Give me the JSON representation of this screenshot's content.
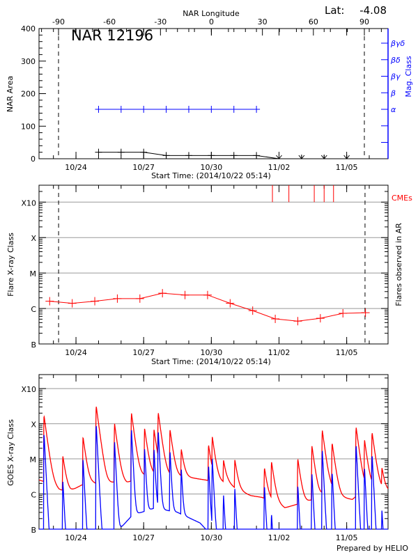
{
  "header": {
    "lat_label": "Lat:",
    "lat_value": "-4.08"
  },
  "footer": {
    "credit": "Prepared by HELIO"
  },
  "chart_data": [
    {
      "type": "line",
      "title": "NAR 12196",
      "ylabel": "NAR Area",
      "xlabel": "Start Time: (2014/10/22 05:14)",
      "top_xlabel": "NAR Longitude",
      "right_ylabel": "Mag. Class",
      "xlim": [
        "2014-10-22T08:40",
        "2014-11-06T20:00"
      ],
      "ylim": [
        0,
        400
      ],
      "yticks": [
        "0",
        "100",
        "200",
        "300",
        "400"
      ],
      "xticks": [
        {
          "date": "2014-10-24T00:00",
          "label": "10/24"
        },
        {
          "date": "2014-10-27T00:00",
          "label": "10/27"
        },
        {
          "date": "2014-10-30T00:00",
          "label": "10/30"
        },
        {
          "date": "2014-11-02T00:00",
          "label": "11/02"
        },
        {
          "date": "2014-11-05T00:00",
          "label": "11/05"
        }
      ],
      "longitude_ticks": [
        "-90",
        "-60",
        "-30",
        "0",
        "30",
        "60",
        "90"
      ],
      "limb_longitudes": [
        -90,
        90
      ],
      "mag_class_ticks": [
        "α",
        "β",
        "βγ",
        "βδ",
        "βγδ"
      ],
      "area_series": {
        "color": "#000000",
        "dates": [
          "2014-10-25T00:00",
          "2014-10-26T00:00",
          "2014-10-27T00:00",
          "2014-10-28T00:00",
          "2014-10-29T00:00",
          "2014-10-30T00:00",
          "2014-10-31T00:00",
          "2014-11-01T00:00",
          "2014-11-02T00:00"
        ],
        "values": [
          20,
          20,
          20,
          10,
          10,
          10,
          10,
          10,
          0
        ]
      },
      "area_below_limit_dates": [
        "2014-11-02T00:00",
        "2014-11-03T00:00",
        "2014-11-04T00:00",
        "2014-11-05T00:00"
      ],
      "mag_class_series": {
        "color": "#0000ff",
        "dates": [
          "2014-10-25T00:00",
          "2014-10-26T00:00",
          "2014-10-27T00:00",
          "2014-10-28T00:00",
          "2014-10-29T00:00",
          "2014-10-30T00:00",
          "2014-10-31T00:00",
          "2014-11-01T00:00"
        ],
        "values": [
          "α",
          "α",
          "α",
          "α",
          "α",
          "α",
          "α",
          "α"
        ]
      }
    },
    {
      "type": "line",
      "ylabel": "Flare X-ray Class",
      "right_ylabel": "Flares observed in AR",
      "xlabel": "Start Time: (2014/10/22 05:14)",
      "yscale": "log",
      "ylim": [
        1e-07,
        0.003
      ],
      "yticks": [
        {
          "value": 1e-07,
          "label": "B"
        },
        {
          "value": 1e-06,
          "label": "C"
        },
        {
          "value": 1e-05,
          "label": "M"
        },
        {
          "value": 0.0001,
          "label": "X"
        },
        {
          "value": 0.001,
          "label": "X10"
        }
      ],
      "grid": true,
      "limb_dates": [
        "2014-10-23T05:30",
        "2014-11-05T19:30"
      ],
      "series": {
        "color": "#ff0000",
        "dates": [
          "2014-10-22T20:00",
          "2014-10-23T20:00",
          "2014-10-24T20:00",
          "2014-10-25T20:00",
          "2014-10-26T20:00",
          "2014-10-27T20:00",
          "2014-10-28T20:00",
          "2014-10-29T20:00",
          "2014-10-30T20:00",
          "2014-10-31T20:00",
          "2014-11-01T20:00",
          "2014-11-02T20:00",
          "2014-11-03T20:00",
          "2014-11-04T20:00",
          "2014-11-05T20:00"
        ],
        "values": [
          1.6e-06,
          1.4e-06,
          1.6e-06,
          1.9e-06,
          1.9e-06,
          2.7e-06,
          2.4e-06,
          2.4e-06,
          1.4e-06,
          8.7e-07,
          5.1e-07,
          4.4e-07,
          5.3e-07,
          7.3e-07,
          7.6e-07
        ]
      },
      "cmes": {
        "label": "CMEs",
        "color": "#ff0000",
        "dates": [
          "2014-11-01T17:00",
          "2014-11-02T10:30",
          "2014-11-03T13:30",
          "2014-11-04T00:00",
          "2014-11-04T10:00"
        ]
      }
    },
    {
      "type": "line",
      "ylabel": "GOES X-ray Class",
      "yscale": "log",
      "ylim": [
        1e-07,
        0.0025
      ],
      "grid": true,
      "yticks": [
        {
          "value": 1e-07,
          "label": "B"
        },
        {
          "value": 1e-06,
          "label": "C"
        },
        {
          "value": 1e-05,
          "label": "M"
        },
        {
          "value": 0.0001,
          "label": "X"
        },
        {
          "value": 0.001,
          "label": "X10"
        }
      ],
      "series": [
        {
          "color": "#ff0000",
          "baseline": [
            [
              "2014-10-22T09:00",
              2.5e-06
            ],
            [
              "2014-10-22T20:00",
              2e-06
            ],
            [
              "2014-10-23T06:00",
              1.3e-06
            ],
            [
              "2014-10-23T18:00",
              1.2e-06
            ],
            [
              "2014-10-24T06:00",
              1.8e-06
            ],
            [
              "2014-10-24T18:00",
              2e-06
            ],
            [
              "2014-10-25T06:00",
              1.8e-06
            ],
            [
              "2014-10-25T18:00",
              2.2e-06
            ],
            [
              "2014-10-26T06:00",
              2e-06
            ],
            [
              "2014-10-26T18:00",
              3e-06
            ],
            [
              "2014-10-27T06:00",
              3.5e-06
            ],
            [
              "2014-10-27T18:00",
              3.5e-06
            ],
            [
              "2014-10-28T06:00",
              3.2e-06
            ],
            [
              "2014-10-28T18:00",
              3e-06
            ],
            [
              "2014-10-29T06:00",
              2.8e-06
            ],
            [
              "2014-10-29T18:00",
              2.5e-06
            ],
            [
              "2014-10-30T06:00",
              2.2e-06
            ],
            [
              "2014-10-30T18:00",
              2e-06
            ],
            [
              "2014-10-31T06:00",
              1.2e-06
            ],
            [
              "2014-10-31T18:00",
              9e-07
            ],
            [
              "2014-11-01T06:00",
              8e-07
            ],
            [
              "2014-11-01T18:00",
              6e-07
            ],
            [
              "2014-11-02T06:00",
              4e-07
            ],
            [
              "2014-11-02T18:00",
              5e-07
            ],
            [
              "2014-11-03T06:00",
              6e-07
            ],
            [
              "2014-11-03T18:00",
              8e-07
            ],
            [
              "2014-11-04T06:00",
              1.4e-06
            ],
            [
              "2014-11-04T18:00",
              8e-07
            ],
            [
              "2014-11-05T06:00",
              7e-07
            ],
            [
              "2014-11-05T18:00",
              1.3e-06
            ],
            [
              "2014-11-06T06:00",
              1.6e-06
            ],
            [
              "2014-11-06T20:00",
              1.2e-06
            ]
          ]
        },
        {
          "color": "#0000ff",
          "baseline": [
            [
              "2014-10-22T09:00",
              1e-08
            ],
            [
              "2014-10-25T12:00",
              5e-08
            ],
            [
              "2014-10-26T12:00",
              2.5e-07
            ],
            [
              "2014-10-27T12:00",
              4e-07
            ],
            [
              "2014-10-28T12:00",
              3e-07
            ],
            [
              "2014-10-29T12:00",
              1.5e-07
            ],
            [
              "2014-10-30T12:00",
              3e-08
            ],
            [
              "2014-11-06T20:00",
              1e-08
            ]
          ]
        }
      ],
      "flares": [
        [
          "2014-10-22T14:00",
          0.00017,
          5.4e-05
        ],
        [
          "2014-10-23T10:00",
          1.1e-05,
          2.5e-06
        ],
        [
          "2014-10-24T07:30",
          4e-05,
          1e-05
        ],
        [
          "2014-10-24T21:30",
          0.00032,
          0.0001
        ],
        [
          "2014-10-25T17:00",
          0.0001,
          3.2e-05
        ],
        [
          "2014-10-26T11:00",
          0.0002,
          7e-05
        ],
        [
          "2014-10-27T01:00",
          7e-05,
          1.9e-05
        ],
        [
          "2014-10-27T11:00",
          6.5e-05,
          1.9e-05
        ],
        [
          "2014-10-27T15:30",
          0.0002,
          6.5e-05
        ],
        [
          "2014-10-28T04:00",
          6.5e-05,
          1.7e-05
        ],
        [
          "2014-10-28T16:00",
          1.6e-05,
          5.3e-06
        ],
        [
          "2014-10-29T21:00",
          2.3e-05,
          7e-06
        ],
        [
          "2014-10-30T01:00",
          3.7e-05,
          1e-05
        ],
        [
          "2014-10-30T13:00",
          7e-06,
          9e-07
        ],
        [
          "2014-10-31T01:00",
          8e-06,
          1.4e-06
        ],
        [
          "2014-11-01T08:30",
          4.9e-06,
          1.8e-06
        ],
        [
          "2014-11-01T16:00",
          7.6e-06,
          2.6e-07
        ],
        [
          "2014-11-02T20:00",
          9.5e-06,
          1.8e-06
        ],
        [
          "2014-11-03T11:00",
          2.3e-05,
          3.9e-06
        ],
        [
          "2014-11-03T22:00",
          6.6e-05,
          1.9e-05
        ],
        [
          "2014-11-04T08:30",
          2.7e-05,
          4.4e-06
        ],
        [
          "2014-11-05T10:00",
          8e-05,
          2.6e-05
        ],
        [
          "2014-11-05T19:00",
          3.2e-05,
          5.3e-06
        ],
        [
          "2014-11-06T03:00",
          5.5e-05,
          1.4e-05
        ],
        [
          "2014-11-06T13:30",
          3.9e-06,
          3.5e-07
        ]
      ]
    }
  ]
}
